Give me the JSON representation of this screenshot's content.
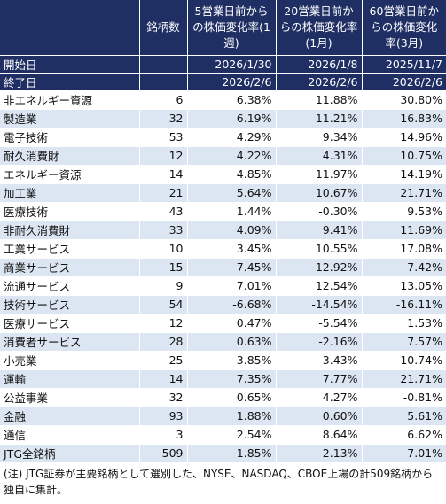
{
  "header": {
    "count_label": "銘柄数",
    "period1": "5営業日前からの株価変化率(1週)",
    "period2": "20営業日前からの株価変化率(1月)",
    "period3": "60営業日前からの株価変化率(3月)"
  },
  "start_row": {
    "label": "開始日",
    "d1": "2026/1/30",
    "d2": "2026/1/8",
    "d3": "2025/11/7"
  },
  "end_row": {
    "label": "終了日",
    "d1": "2026/2/6",
    "d2": "2026/2/6",
    "d3": "2026/2/6"
  },
  "rows": [
    {
      "sector": "非エネルギー資源",
      "count": "6",
      "w1": "6.38%",
      "m1": "11.88%",
      "m3": "30.80%"
    },
    {
      "sector": "製造業",
      "count": "32",
      "w1": "6.19%",
      "m1": "11.21%",
      "m3": "16.83%"
    },
    {
      "sector": "電子技術",
      "count": "53",
      "w1": "4.29%",
      "m1": "9.34%",
      "m3": "14.96%"
    },
    {
      "sector": "耐久消費財",
      "count": "12",
      "w1": "4.22%",
      "m1": "4.31%",
      "m3": "10.75%"
    },
    {
      "sector": "エネルギー資源",
      "count": "14",
      "w1": "4.85%",
      "m1": "11.97%",
      "m3": "14.19%"
    },
    {
      "sector": "加工業",
      "count": "21",
      "w1": "5.64%",
      "m1": "10.67%",
      "m3": "21.71%"
    },
    {
      "sector": "医療技術",
      "count": "43",
      "w1": "1.44%",
      "m1": "-0.30%",
      "m3": "9.53%"
    },
    {
      "sector": "非耐久消費財",
      "count": "33",
      "w1": "4.09%",
      "m1": "9.41%",
      "m3": "11.69%"
    },
    {
      "sector": "工業サービス",
      "count": "10",
      "w1": "3.45%",
      "m1": "10.55%",
      "m3": "17.08%"
    },
    {
      "sector": "商業サービス",
      "count": "15",
      "w1": "-7.45%",
      "m1": "-12.92%",
      "m3": "-7.42%"
    },
    {
      "sector": "流通サービス",
      "count": "9",
      "w1": "7.01%",
      "m1": "12.54%",
      "m3": "13.05%"
    },
    {
      "sector": "技術サービス",
      "count": "54",
      "w1": "-6.68%",
      "m1": "-14.54%",
      "m3": "-16.11%"
    },
    {
      "sector": "医療サービス",
      "count": "12",
      "w1": "0.47%",
      "m1": "-5.54%",
      "m3": "1.53%"
    },
    {
      "sector": "消費者サービス",
      "count": "28",
      "w1": "0.63%",
      "m1": "-2.16%",
      "m3": "7.57%"
    },
    {
      "sector": "小売業",
      "count": "25",
      "w1": "3.85%",
      "m1": "3.43%",
      "m3": "10.74%"
    },
    {
      "sector": "運輸",
      "count": "14",
      "w1": "7.35%",
      "m1": "7.77%",
      "m3": "21.71%"
    },
    {
      "sector": "公益事業",
      "count": "32",
      "w1": "0.65%",
      "m1": "4.27%",
      "m3": "-0.81%"
    },
    {
      "sector": "金融",
      "count": "93",
      "w1": "1.88%",
      "m1": "0.60%",
      "m3": "5.61%"
    },
    {
      "sector": "通信",
      "count": "3",
      "w1": "2.54%",
      "m1": "8.64%",
      "m3": "6.62%"
    }
  ],
  "total": {
    "sector": "JTG全銘柄",
    "count": "509",
    "w1": "1.85%",
    "m1": "2.13%",
    "m3": "7.01%"
  },
  "note": "(注) JTG証券が主要銘柄として選別した、NYSE、NASDAQ、CBOE上場の計509銘柄から独自に集計。"
}
